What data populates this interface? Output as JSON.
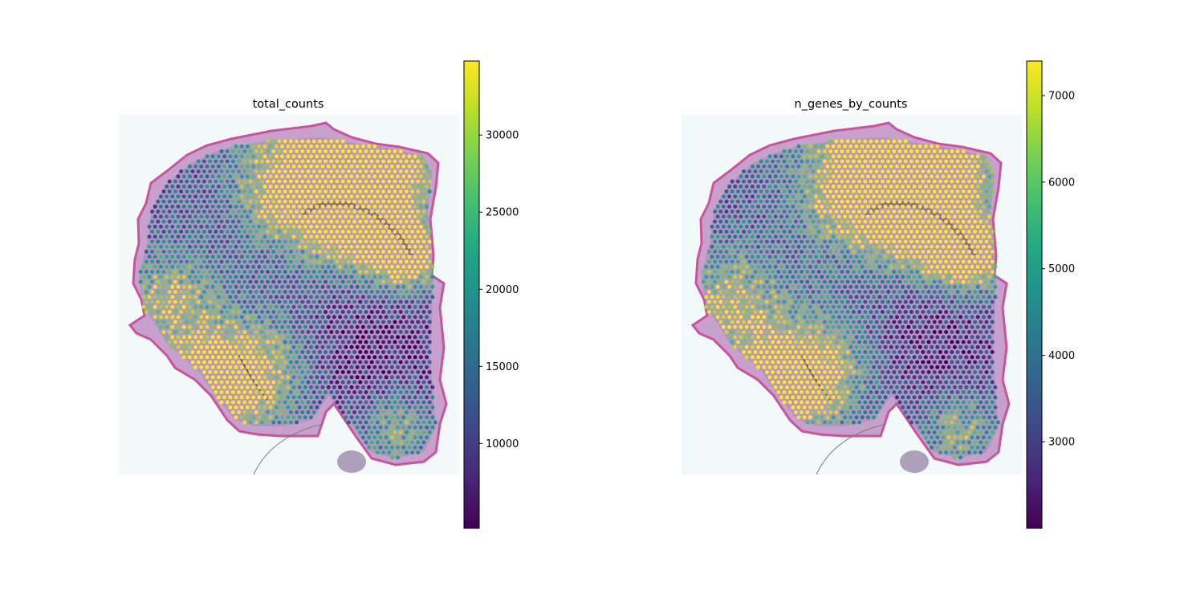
{
  "chart_data": [
    {
      "type": "heatmap",
      "title": "total_counts",
      "colormap": "viridis",
      "colorbar": {
        "vmin": 4500,
        "vmax": 34800,
        "ticks": [
          10000,
          15000,
          20000,
          25000,
          30000
        ],
        "tick_labels": [
          "10000",
          "15000",
          "20000",
          "25000",
          "30000"
        ]
      },
      "axes_visible": false,
      "tissue": "brain section (H&E)",
      "spot_pattern": {
        "high_regions": [
          "upper cortex (top right)",
          "hippocampus region",
          "lower-left cortex"
        ],
        "low_regions": [
          "central / right interior"
        ]
      }
    },
    {
      "type": "heatmap",
      "title": "n_genes_by_counts",
      "colormap": "viridis",
      "colorbar": {
        "vmin": 2000,
        "vmax": 7400,
        "ticks": [
          3000,
          4000,
          5000,
          6000,
          7000
        ],
        "tick_labels": [
          "3000",
          "4000",
          "5000",
          "6000",
          "7000"
        ]
      },
      "axes_visible": false,
      "tissue": "brain section (H&E)",
      "spot_pattern": {
        "high_regions": [
          "upper cortex (top right)",
          "hippocampus region",
          "lower-left cortex"
        ],
        "low_regions": [
          "central / right interior"
        ]
      }
    }
  ]
}
